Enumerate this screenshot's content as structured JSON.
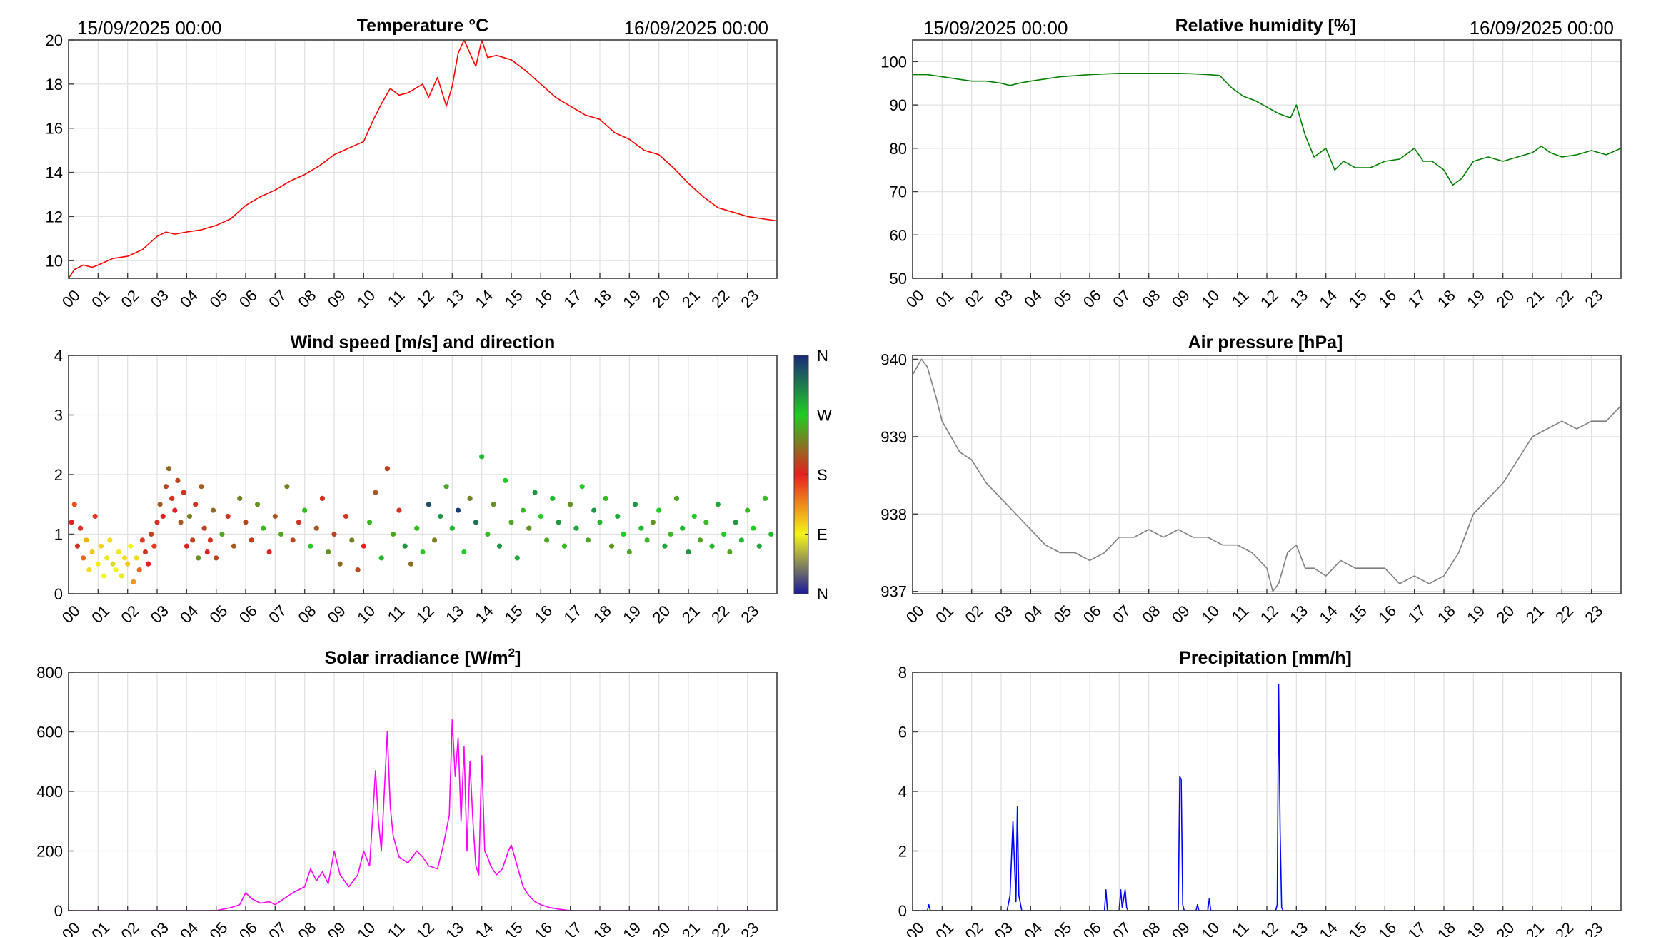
{
  "figure": {
    "start_label": "15/09/2025 00:00",
    "end_label": "16/09/2025 00:00",
    "hour_ticks": [
      "00",
      "01",
      "02",
      "03",
      "04",
      "05",
      "06",
      "07",
      "08",
      "09",
      "10",
      "11",
      "12",
      "13",
      "14",
      "15",
      "16",
      "17",
      "18",
      "19",
      "20",
      "21",
      "22",
      "23"
    ],
    "colorbar": {
      "labels": [
        "N",
        "E",
        "S",
        "W",
        "N"
      ],
      "colors": [
        "#1a1a9a",
        "#f5f51a",
        "#e62020",
        "#22cc22",
        "#1a2a7a"
      ]
    }
  },
  "chart_data": [
    {
      "id": "temperature",
      "type": "line",
      "title": "Temperature °C",
      "color": "#ff0000",
      "xlabel": "",
      "ylabel": "",
      "xlim": [
        0,
        24
      ],
      "ylim": [
        9.2,
        20
      ],
      "yticks": [
        10,
        12,
        14,
        16,
        18,
        20
      ],
      "x": [
        0,
        0.2,
        0.5,
        0.8,
        1.0,
        1.5,
        2.0,
        2.5,
        3.0,
        3.3,
        3.6,
        4.0,
        4.5,
        5.0,
        5.5,
        6.0,
        6.5,
        7.0,
        7.5,
        8.0,
        8.5,
        9.0,
        9.5,
        10.0,
        10.3,
        10.6,
        10.9,
        11.2,
        11.5,
        12.0,
        12.2,
        12.5,
        12.8,
        13.0,
        13.2,
        13.4,
        13.6,
        13.8,
        14.0,
        14.2,
        14.5,
        15.0,
        15.5,
        16.0,
        16.5,
        17.0,
        17.5,
        18.0,
        18.5,
        19.0,
        19.5,
        20.0,
        20.5,
        21.0,
        21.5,
        22.0,
        22.5,
        23.0,
        23.5,
        24.0
      ],
      "y": [
        9.2,
        9.6,
        9.8,
        9.7,
        9.8,
        10.1,
        10.2,
        10.5,
        11.1,
        11.3,
        11.2,
        11.3,
        11.4,
        11.6,
        11.9,
        12.5,
        12.9,
        13.2,
        13.6,
        13.9,
        14.3,
        14.8,
        15.1,
        15.4,
        16.3,
        17.1,
        17.8,
        17.5,
        17.6,
        18.0,
        17.4,
        18.3,
        17.0,
        17.9,
        19.4,
        20.0,
        19.4,
        18.8,
        20.0,
        19.2,
        19.3,
        19.1,
        18.6,
        18.0,
        17.4,
        17.0,
        16.6,
        16.4,
        15.8,
        15.5,
        15.0,
        14.8,
        14.2,
        13.5,
        12.9,
        12.4,
        12.2,
        12.0,
        11.9,
        11.8
      ]
    },
    {
      "id": "humidity",
      "type": "line",
      "title": "Relative humidity [%]",
      "color": "#008000",
      "xlabel": "",
      "ylabel": "",
      "xlim": [
        0,
        24
      ],
      "ylim": [
        50,
        105
      ],
      "yticks": [
        50,
        60,
        70,
        80,
        90,
        100
      ],
      "x": [
        0,
        0.5,
        1.0,
        1.5,
        2.0,
        2.5,
        3.0,
        3.3,
        3.6,
        4.0,
        5.0,
        6.0,
        7.0,
        8.0,
        9.0,
        9.5,
        10.0,
        10.4,
        10.8,
        11.2,
        11.6,
        12.0,
        12.4,
        12.8,
        13.0,
        13.3,
        13.6,
        14.0,
        14.3,
        14.6,
        15.0,
        15.5,
        16.0,
        16.5,
        17.0,
        17.3,
        17.6,
        18.0,
        18.3,
        18.6,
        19.0,
        19.5,
        20.0,
        20.5,
        21.0,
        21.3,
        21.6,
        22.0,
        22.5,
        23.0,
        23.5,
        24.0
      ],
      "y": [
        97,
        97,
        96.5,
        96,
        95.5,
        95.5,
        95,
        94.5,
        95,
        95.5,
        96.5,
        97,
        97.3,
        97.3,
        97.3,
        97.2,
        97,
        96.8,
        94,
        92,
        91,
        89.5,
        88,
        87,
        90,
        83,
        78,
        80,
        75,
        77,
        75.5,
        75.5,
        77,
        77.5,
        80,
        77,
        77,
        75,
        71.5,
        73,
        77,
        78,
        77,
        78,
        79,
        80.5,
        79,
        78,
        78.5,
        79.5,
        78.5,
        80
      ]
    },
    {
      "id": "wind",
      "type": "scatter",
      "title": "Wind speed [m/s] and direction",
      "xlabel": "",
      "ylabel": "",
      "xlim": [
        0,
        24
      ],
      "ylim": [
        0,
        4
      ],
      "yticks": [
        0,
        1,
        2,
        3,
        4
      ],
      "x": [
        0.1,
        0.2,
        0.3,
        0.4,
        0.5,
        0.6,
        0.7,
        0.8,
        0.9,
        1.0,
        1.1,
        1.2,
        1.3,
        1.4,
        1.5,
        1.6,
        1.7,
        1.8,
        1.9,
        2.0,
        2.1,
        2.2,
        2.3,
        2.4,
        2.5,
        2.6,
        2.7,
        2.8,
        2.9,
        3.0,
        3.1,
        3.2,
        3.3,
        3.4,
        3.5,
        3.6,
        3.7,
        3.8,
        3.9,
        4.0,
        4.1,
        4.2,
        4.3,
        4.4,
        4.5,
        4.6,
        4.7,
        4.8,
        4.9,
        5.0,
        5.2,
        5.4,
        5.6,
        5.8,
        6.0,
        6.2,
        6.4,
        6.6,
        6.8,
        7.0,
        7.2,
        7.4,
        7.6,
        7.8,
        8.0,
        8.2,
        8.4,
        8.6,
        8.8,
        9.0,
        9.2,
        9.4,
        9.6,
        9.8,
        10.0,
        10.2,
        10.4,
        10.6,
        10.8,
        11.0,
        11.2,
        11.4,
        11.6,
        11.8,
        12.0,
        12.2,
        12.4,
        12.6,
        12.8,
        13.0,
        13.2,
        13.4,
        13.6,
        13.8,
        14.0,
        14.2,
        14.4,
        14.6,
        14.8,
        15.0,
        15.2,
        15.4,
        15.6,
        15.8,
        16.0,
        16.2,
        16.4,
        16.6,
        16.8,
        17.0,
        17.2,
        17.4,
        17.6,
        17.8,
        18.0,
        18.2,
        18.4,
        18.6,
        18.8,
        19.0,
        19.2,
        19.4,
        19.6,
        19.8,
        20.0,
        20.2,
        20.4,
        20.6,
        20.8,
        21.0,
        21.2,
        21.4,
        21.6,
        21.8,
        22.0,
        22.2,
        22.4,
        22.6,
        22.8,
        23.0,
        23.2,
        23.4,
        23.6,
        23.8
      ],
      "y": [
        1.2,
        1.5,
        0.8,
        1.1,
        0.6,
        0.9,
        0.4,
        0.7,
        1.3,
        0.5,
        0.8,
        0.3,
        0.6,
        0.9,
        0.5,
        0.4,
        0.7,
        0.3,
        0.6,
        0.5,
        0.8,
        0.2,
        0.6,
        0.4,
        0.9,
        0.7,
        0.5,
        1.0,
        0.8,
        1.2,
        1.5,
        1.3,
        1.8,
        2.1,
        1.6,
        1.4,
        1.9,
        1.2,
        1.7,
        0.8,
        1.3,
        0.9,
        1.5,
        0.6,
        1.8,
        1.1,
        0.7,
        0.9,
        1.4,
        0.6,
        1.0,
        1.3,
        0.8,
        1.6,
        1.2,
        0.9,
        1.5,
        1.1,
        0.7,
        1.3,
        1.0,
        1.8,
        0.9,
        1.2,
        1.4,
        0.8,
        1.1,
        1.6,
        0.7,
        1.0,
        0.5,
        1.3,
        0.9,
        0.4,
        0.8,
        1.2,
        1.7,
        0.6,
        2.1,
        1.0,
        1.4,
        0.8,
        0.5,
        1.1,
        0.7,
        1.5,
        0.9,
        1.3,
        1.8,
        1.1,
        1.4,
        0.7,
        1.6,
        1.2,
        2.3,
        1.0,
        1.5,
        0.8,
        1.9,
        1.2,
        0.6,
        1.4,
        1.1,
        1.7,
        1.3,
        0.9,
        1.6,
        1.2,
        0.8,
        1.5,
        1.1,
        1.8,
        0.9,
        1.4,
        1.2,
        1.6,
        0.8,
        1.3,
        1.0,
        0.7,
        1.5,
        1.1,
        0.9,
        1.2,
        1.4,
        0.8,
        1.0,
        1.6,
        1.1,
        0.7,
        1.3,
        0.9,
        1.2,
        0.8,
        1.5,
        1.0,
        0.7,
        1.2,
        0.9,
        1.4,
        1.1,
        0.8,
        1.6,
        1.0
      ],
      "direction_deg": [
        180,
        160,
        190,
        175,
        150,
        120,
        100,
        110,
        170,
        95,
        105,
        90,
        85,
        100,
        80,
        90,
        95,
        85,
        100,
        110,
        90,
        130,
        100,
        150,
        170,
        190,
        180,
        200,
        170,
        190,
        210,
        180,
        200,
        220,
        190,
        180,
        200,
        210,
        190,
        180,
        230,
        200,
        190,
        240,
        210,
        200,
        180,
        190,
        220,
        200,
        250,
        190,
        210,
        230,
        200,
        190,
        240,
        260,
        180,
        210,
        250,
        230,
        200,
        190,
        260,
        270,
        210,
        190,
        240,
        200,
        220,
        190,
        230,
        200,
        180,
        260,
        210,
        280,
        200,
        250,
        190,
        300,
        220,
        260,
        270,
        340,
        230,
        300,
        250,
        280,
        350,
        270,
        230,
        320,
        280,
        260,
        240,
        300,
        270,
        250,
        290,
        260,
        240,
        300,
        270,
        250,
        280,
        300,
        260,
        240,
        290,
        270,
        250,
        300,
        280,
        260,
        240,
        290,
        270,
        250,
        300,
        280,
        260,
        240,
        270,
        290,
        260,
        250,
        280,
        300,
        270,
        250,
        260,
        280,
        290,
        270,
        250,
        300,
        280,
        260,
        270,
        290,
        260,
        280
      ]
    },
    {
      "id": "pressure",
      "type": "line",
      "title": "Air pressure [hPa]",
      "color": "#808080",
      "xlabel": "",
      "ylabel": "",
      "xlim": [
        0,
        24
      ],
      "ylim": [
        936.97,
        940.05
      ],
      "yticks": [
        937,
        938,
        939,
        940
      ],
      "x": [
        0,
        0.3,
        0.5,
        0.8,
        1.0,
        1.3,
        1.6,
        2.0,
        2.5,
        3.0,
        3.5,
        4.0,
        4.5,
        5.0,
        5.5,
        6.0,
        6.5,
        7.0,
        7.5,
        8.0,
        8.5,
        9.0,
        9.5,
        10.0,
        10.5,
        11.0,
        11.5,
        12.0,
        12.2,
        12.4,
        12.7,
        13.0,
        13.3,
        13.6,
        14.0,
        14.5,
        15.0,
        15.5,
        16.0,
        16.5,
        17.0,
        17.5,
        18.0,
        18.5,
        19.0,
        19.5,
        20.0,
        20.5,
        21.0,
        21.5,
        22.0,
        22.5,
        23.0,
        23.5,
        24.0
      ],
      "y": [
        939.8,
        940,
        939.9,
        939.5,
        939.2,
        939,
        938.8,
        938.7,
        938.4,
        938.2,
        938.0,
        937.8,
        937.6,
        937.5,
        937.5,
        937.4,
        937.5,
        937.7,
        937.7,
        937.8,
        937.7,
        937.8,
        937.7,
        937.7,
        937.6,
        937.6,
        937.5,
        937.3,
        937.0,
        937.1,
        937.5,
        937.6,
        937.3,
        937.3,
        937.2,
        937.4,
        937.3,
        937.3,
        937.3,
        937.1,
        937.2,
        937.1,
        937.2,
        937.5,
        938.0,
        938.2,
        938.4,
        938.7,
        939.0,
        939.1,
        939.2,
        939.1,
        939.2,
        939.2,
        939.4
      ]
    },
    {
      "id": "solar",
      "type": "line",
      "title": "Solar irradiance [W/m2]",
      "title_text": "Solar irradiance [W/m",
      "title_sup": "2",
      "title_end": "]",
      "color": "#ff00ff",
      "xlabel": "",
      "ylabel": "",
      "xlim": [
        0,
        24
      ],
      "ylim": [
        0,
        800
      ],
      "yticks": [
        0,
        200,
        400,
        600,
        800
      ],
      "x": [
        0,
        5.0,
        5.5,
        5.8,
        6.0,
        6.2,
        6.5,
        6.8,
        7.0,
        7.3,
        7.6,
        8.0,
        8.2,
        8.4,
        8.6,
        8.8,
        9.0,
        9.2,
        9.5,
        9.8,
        10.0,
        10.2,
        10.4,
        10.5,
        10.6,
        10.8,
        10.9,
        11.0,
        11.2,
        11.5,
        11.8,
        12.0,
        12.2,
        12.5,
        12.7,
        12.9,
        13.0,
        13.1,
        13.2,
        13.3,
        13.4,
        13.5,
        13.6,
        13.7,
        13.8,
        13.9,
        14.0,
        14.1,
        14.2,
        14.3,
        14.5,
        14.7,
        14.9,
        15.0,
        15.2,
        15.4,
        15.6,
        15.8,
        16.0,
        16.3,
        16.6,
        17.0,
        24.0
      ],
      "y": [
        0,
        0,
        10,
        20,
        60,
        40,
        25,
        30,
        20,
        40,
        60,
        80,
        140,
        100,
        130,
        90,
        200,
        120,
        80,
        120,
        200,
        150,
        470,
        300,
        200,
        600,
        350,
        250,
        180,
        160,
        200,
        180,
        150,
        140,
        220,
        320,
        640,
        450,
        580,
        300,
        550,
        200,
        500,
        300,
        150,
        120,
        520,
        200,
        180,
        150,
        120,
        140,
        200,
        220,
        150,
        80,
        50,
        30,
        20,
        10,
        5,
        0,
        0
      ]
    },
    {
      "id": "precipitation",
      "type": "line",
      "title": "Precipitation [mm/h]",
      "color": "#0000ff",
      "xlabel": "",
      "ylabel": "",
      "xlim": [
        0,
        24
      ],
      "ylim": [
        0,
        8
      ],
      "yticks": [
        0,
        2,
        4,
        6,
        8
      ],
      "x": [
        0,
        0.5,
        0.55,
        0.6,
        3.2,
        3.3,
        3.4,
        3.5,
        3.55,
        3.6,
        3.7,
        6.5,
        6.55,
        6.6,
        7.0,
        7.05,
        7.1,
        7.2,
        7.25,
        7.3,
        9.0,
        9.05,
        9.1,
        9.15,
        9.2,
        9.6,
        9.65,
        9.7,
        10.0,
        10.05,
        10.1,
        12.3,
        12.35,
        12.4,
        12.45,
        12.5,
        12.55,
        24.0
      ],
      "y": [
        0,
        0,
        0.2,
        0,
        0,
        0.5,
        3.0,
        0.3,
        3.5,
        0.5,
        0,
        0,
        0.7,
        0,
        0,
        0.7,
        0.1,
        0.7,
        0.1,
        0,
        0,
        4.5,
        4.4,
        0.2,
        0,
        0,
        0.2,
        0,
        0,
        0.4,
        0,
        0,
        0.2,
        7.6,
        2.7,
        0.1,
        0,
        0
      ]
    }
  ]
}
